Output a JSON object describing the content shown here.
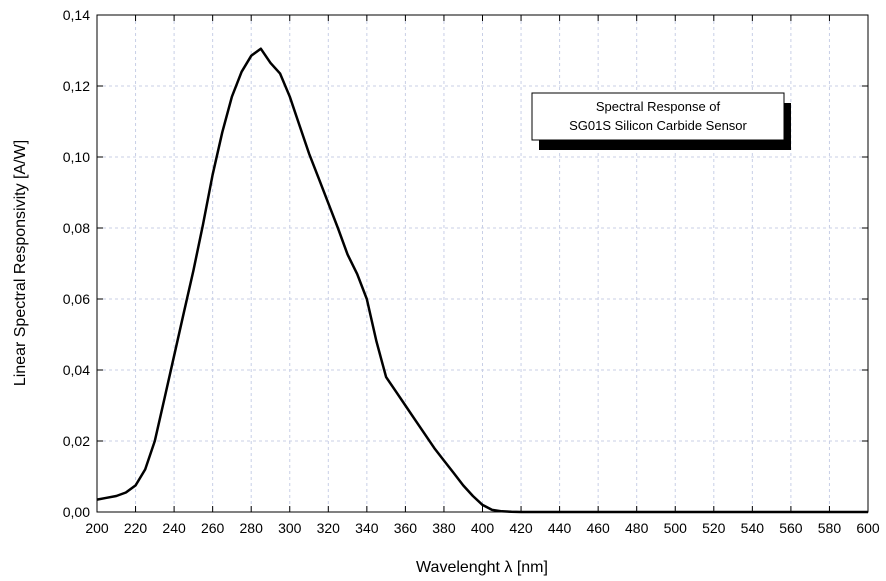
{
  "chart_data": {
    "type": "line",
    "title": "",
    "xlabel": "Wavelenght λ [nm]",
    "ylabel": "Linear Spectral Responsivity  [A/W]",
    "xlim": [
      200,
      600
    ],
    "ylim": [
      0,
      0.14
    ],
    "x_ticks": [
      200,
      220,
      240,
      260,
      280,
      300,
      320,
      340,
      360,
      380,
      400,
      420,
      440,
      460,
      480,
      500,
      520,
      540,
      560,
      580,
      600
    ],
    "x_tick_labels": [
      "200",
      "220",
      "240",
      "260",
      "280",
      "300",
      "320",
      "340",
      "360",
      "380",
      "400",
      "420",
      "440",
      "460",
      "480",
      "500",
      "520",
      "540",
      "560",
      "580",
      "600"
    ],
    "y_ticks": [
      0,
      0.02,
      0.04,
      0.06,
      0.08,
      0.1,
      0.12,
      0.14
    ],
    "y_tick_labels": [
      "0,00",
      "0,02",
      "0,04",
      "0,06",
      "0,08",
      "0,10",
      "0,12",
      "0,14"
    ],
    "grid": true,
    "legend": {
      "placement": "top-right",
      "lines": [
        "Spectral Response of",
        "SG01S Silicon Carbide Sensor"
      ]
    },
    "series": [
      {
        "color": "#000000",
        "x": [
          200,
          205,
          210,
          215,
          220,
          225,
          230,
          235,
          240,
          245,
          250,
          255,
          260,
          265,
          270,
          275,
          280,
          285,
          290,
          295,
          300,
          305,
          310,
          315,
          320,
          325,
          330,
          335,
          340,
          345,
          350,
          355,
          360,
          365,
          370,
          375,
          380,
          385,
          390,
          395,
          400,
          405,
          410,
          415,
          420,
          430,
          440,
          460,
          480,
          500,
          520,
          540,
          560,
          580,
          600
        ],
        "y": [
          0.0035,
          0.004,
          0.0045,
          0.0055,
          0.0075,
          0.012,
          0.02,
          0.032,
          0.044,
          0.056,
          0.068,
          0.081,
          0.095,
          0.107,
          0.117,
          0.124,
          0.1285,
          0.1305,
          0.1265,
          0.1235,
          0.117,
          0.109,
          0.101,
          0.094,
          0.087,
          0.08,
          0.0725,
          0.067,
          0.06,
          0.048,
          0.038,
          0.034,
          0.03,
          0.026,
          0.022,
          0.018,
          0.0145,
          0.011,
          0.0075,
          0.0045,
          0.002,
          0.0006,
          0.0002,
          5e-05,
          0.0,
          0.0,
          0.0,
          0.0,
          0.0,
          0.0,
          0.0,
          0.0,
          0.0,
          0.0,
          0.0
        ]
      }
    ]
  }
}
